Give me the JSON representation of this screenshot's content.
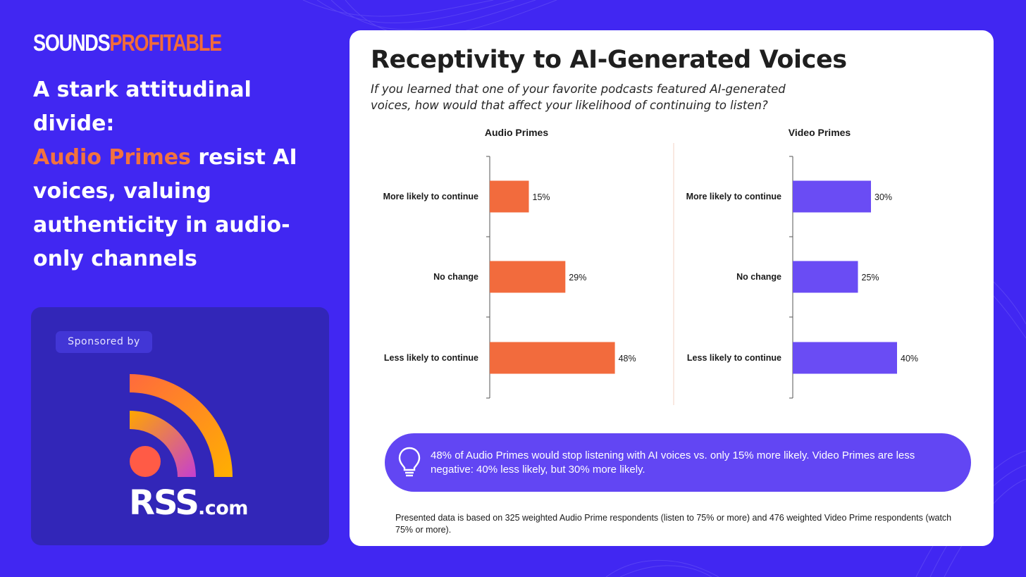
{
  "brand": {
    "part1": "SOUNDS",
    "part2": "PROFITABLE"
  },
  "headline": {
    "line1": "A stark attitudinal divide:",
    "accent": "Audio Primes",
    "rest": " resist AI voices, valuing authenticity in audio-only channels"
  },
  "sponsor": {
    "label": "Sponsored by",
    "logo_main": "RSS",
    "logo_suffix": ".com"
  },
  "card": {
    "title": "Receptivity to AI-Generated Voices",
    "question": "If you learned that one of your favorite podcasts featured AI-generated voices, how would that affect your likelihood of continuing to listen?"
  },
  "colors": {
    "audio": "#f26b3d",
    "video": "#6a4cf4",
    "background": "#4127f2"
  },
  "chart_data": [
    {
      "type": "bar",
      "orientation": "horizontal",
      "title": "Audio Primes",
      "categories": [
        "More likely to continue",
        "No change",
        "Less likely to continue"
      ],
      "values": [
        15,
        29,
        48
      ],
      "labels": [
        "15%",
        "29%",
        "48%"
      ],
      "xlim": [
        0,
        60
      ],
      "color": "#f26b3d"
    },
    {
      "type": "bar",
      "orientation": "horizontal",
      "title": "Video Primes",
      "categories": [
        "More likely to continue",
        "No change",
        "Less likely to continue"
      ],
      "values": [
        30,
        25,
        40
      ],
      "labels": [
        "30%",
        "25%",
        "40%"
      ],
      "xlim": [
        0,
        60
      ],
      "color": "#6a4cf4"
    }
  ],
  "insight": {
    "text": "48% of Audio Primes would stop listening with AI voices vs. only 15% more likely. Video Primes are less negative: 40% less likely, but 30% more likely."
  },
  "footnote": {
    "text": "Presented data is based on 325 weighted Audio Prime respondents (listen to 75% or more) and 476 weighted Video Prime respondents (watch 75% or more)."
  }
}
